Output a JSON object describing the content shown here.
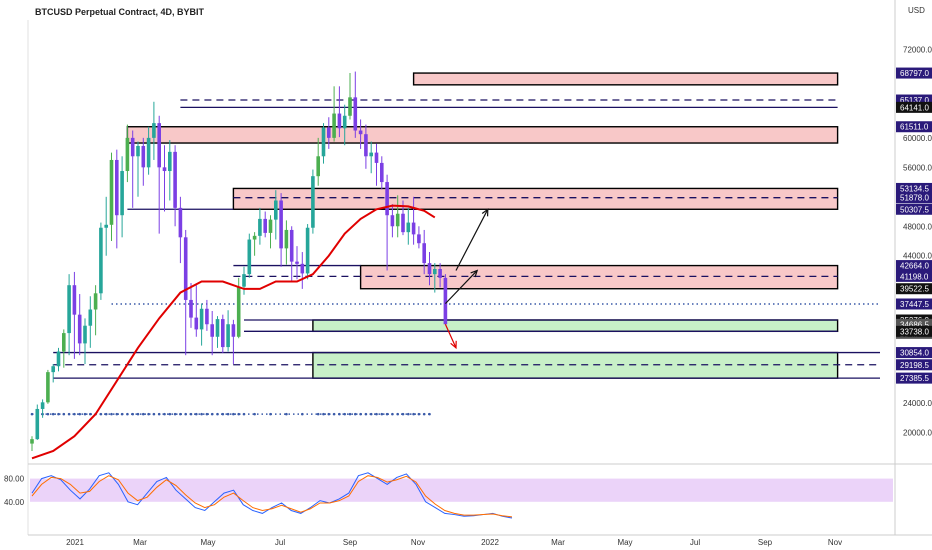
{
  "header": {
    "title": "BTCUSD Perpetual Contract, 4D, BYBIT",
    "currency": "USD"
  },
  "colors": {
    "up": "#26a69a",
    "up_alt": "#4caf50",
    "down": "#7b3fe4",
    "ema": "#e00000",
    "resistance_zone": "#f8c8c8",
    "support_zone": "#c8f0c8",
    "rsi_band": "#e6c8f8",
    "price_tag": "#2a1a7a",
    "price_tag_dark": "#111111",
    "current_price": "#555555"
  },
  "chart_data": {
    "type": "candlestick",
    "title": "BTCUSD Perpetual Contract, 4D, BYBIT",
    "ylabel": "USD",
    "ylim": [
      16000,
      76000
    ],
    "y_ticks": [
      {
        "value": 72000,
        "label": "72000.0"
      },
      {
        "value": 64000,
        "label": "64000.0"
      },
      {
        "value": 60000,
        "label": "60000.0"
      },
      {
        "value": 56000,
        "label": "56000.0"
      },
      {
        "value": 48000,
        "label": "48000.0"
      },
      {
        "value": 44000,
        "label": "44000.0"
      },
      {
        "value": 24000,
        "label": "24000.0"
      },
      {
        "value": 20000,
        "label": "20000.0"
      }
    ],
    "x_ticks": [
      "2021",
      "Mar",
      "May",
      "Jul",
      "Sep",
      "Nov",
      "2022",
      "Mar",
      "May",
      "Jul",
      "Sep",
      "Nov"
    ],
    "price_levels": [
      {
        "value": 68797.0,
        "label": "68797.0",
        "style": "tag"
      },
      {
        "value": 65137.0,
        "label": "65137.0",
        "style": "tag"
      },
      {
        "value": 64141.0,
        "label": "64141.0",
        "style": "dark"
      },
      {
        "value": 61511.0,
        "label": "61511.0",
        "style": "tag"
      },
      {
        "value": 53134.5,
        "label": "53134.5",
        "style": "tag"
      },
      {
        "value": 51878.0,
        "label": "51878.0",
        "style": "tag"
      },
      {
        "value": 50307.5,
        "label": "50307.5",
        "style": "tag"
      },
      {
        "value": 42664.0,
        "label": "42664.0",
        "style": "tag"
      },
      {
        "value": 41198.0,
        "label": "41198.0",
        "style": "tag"
      },
      {
        "value": 39522.5,
        "label": "39522.5",
        "style": "dark"
      },
      {
        "value": 37447.5,
        "label": "37447.5",
        "style": "tag"
      },
      {
        "value": 35276.0,
        "label": "35276.0",
        "style": "dark"
      },
      {
        "value": 34686.5,
        "label": "34686.5",
        "style": "current"
      },
      {
        "value": 33738.0,
        "label": "33738.0",
        "style": "dark"
      },
      {
        "value": 30854.0,
        "label": "30854.0",
        "style": "tag"
      },
      {
        "value": 29198.5,
        "label": "29198.5",
        "style": "tag"
      },
      {
        "value": 27385.5,
        "label": "27385.5",
        "style": "tag"
      }
    ],
    "countdown": "2d 4h",
    "resistance_zones": [
      {
        "top": 68797,
        "bottom": 67200,
        "from": 72,
        "to": 152
      },
      {
        "top": 61511,
        "bottom": 59300,
        "from": 18,
        "to": 152
      },
      {
        "top": 53134.5,
        "bottom": 50307.5,
        "from": 38,
        "to": 152
      },
      {
        "top": 42664,
        "bottom": 39522.5,
        "from": 62,
        "to": 152
      }
    ],
    "support_zones": [
      {
        "top": 35276,
        "bottom": 33738,
        "from": 53,
        "to": 152
      },
      {
        "top": 30854,
        "bottom": 27385.5,
        "from": 53,
        "to": 152
      }
    ],
    "horizontal_lines": [
      {
        "value": 65137,
        "style": "dashed",
        "from": 28,
        "to": 152
      },
      {
        "value": 64141,
        "style": "solid",
        "from": 28,
        "to": 152
      },
      {
        "value": 51878,
        "style": "dashed",
        "from": 38,
        "to": 152
      },
      {
        "value": 50307.5,
        "style": "solid",
        "from": 18,
        "to": 38
      },
      {
        "value": 42664,
        "style": "solid",
        "from": 38,
        "to": 62
      },
      {
        "value": 41198,
        "style": "dashed",
        "from": 38,
        "to": 152
      },
      {
        "value": 37447.5,
        "style": "dotted",
        "from": 15,
        "to": 160
      },
      {
        "value": 35276,
        "style": "solid",
        "from": 40,
        "to": 152
      },
      {
        "value": 33738,
        "style": "solid",
        "from": 40,
        "to": 152
      },
      {
        "value": 30854,
        "style": "solid",
        "from": 4,
        "to": 160
      },
      {
        "value": 29198.5,
        "style": "dashed",
        "from": 4,
        "to": 160
      },
      {
        "value": 27385.5,
        "style": "solid",
        "from": 4,
        "to": 160
      },
      {
        "value": 22500,
        "style": "dotted",
        "from": 0,
        "to": 75
      }
    ],
    "candles": [
      [
        0,
        18500,
        19500,
        17500,
        19100
      ],
      [
        1,
        19100,
        23800,
        19000,
        23200
      ],
      [
        2,
        23200,
        24500,
        22000,
        24100
      ],
      [
        3,
        24100,
        28500,
        23900,
        28200
      ],
      [
        4,
        28200,
        29300,
        26800,
        29000
      ],
      [
        5,
        29000,
        31500,
        28300,
        31000
      ],
      [
        6,
        31000,
        34000,
        28800,
        33500
      ],
      [
        7,
        33500,
        41500,
        30500,
        40000
      ],
      [
        8,
        40000,
        41800,
        30000,
        36000
      ],
      [
        9,
        36000,
        38800,
        30500,
        32100
      ],
      [
        10,
        32100,
        35500,
        29300,
        34500
      ],
      [
        11,
        34500,
        38500,
        31500,
        36700
      ],
      [
        12,
        36700,
        40000,
        33200,
        38900
      ],
      [
        13,
        38900,
        48500,
        38000,
        47800
      ],
      [
        14,
        47800,
        52000,
        44000,
        48200
      ],
      [
        15,
        48200,
        58000,
        46000,
        57000
      ],
      [
        16,
        57000,
        58400,
        45000,
        49500
      ],
      [
        17,
        49500,
        57500,
        46500,
        55500
      ],
      [
        18,
        55500,
        61800,
        54000,
        60000
      ],
      [
        19,
        60000,
        61000,
        50500,
        57500
      ],
      [
        20,
        57500,
        59500,
        52000,
        58900
      ],
      [
        21,
        58900,
        60000,
        53500,
        56000
      ],
      [
        22,
        56000,
        61500,
        55000,
        60000
      ],
      [
        23,
        60000,
        64900,
        57000,
        62000
      ],
      [
        24,
        62000,
        63000,
        47000,
        56000
      ],
      [
        25,
        56000,
        59000,
        50000,
        55500
      ],
      [
        26,
        55500,
        59700,
        51500,
        58100
      ],
      [
        27,
        58100,
        59000,
        48000,
        50500
      ],
      [
        28,
        50500,
        52000,
        43000,
        46500
      ],
      [
        29,
        46500,
        47500,
        30500,
        38000
      ],
      [
        30,
        38000,
        40300,
        34200,
        35600
      ],
      [
        31,
        35600,
        40000,
        33000,
        34000
      ],
      [
        32,
        34000,
        37500,
        31800,
        36800
      ],
      [
        33,
        36800,
        38000,
        33800,
        34700
      ],
      [
        34,
        34700,
        36500,
        30500,
        33000
      ],
      [
        35,
        33000,
        35800,
        31500,
        35400
      ],
      [
        36,
        35400,
        36000,
        30800,
        31600
      ],
      [
        37,
        31600,
        36600,
        31000,
        34700
      ],
      [
        38,
        34700,
        35300,
        29300,
        33000
      ],
      [
        39,
        33000,
        41000,
        32800,
        39800
      ],
      [
        40,
        39800,
        42500,
        38700,
        41500
      ],
      [
        41,
        41500,
        47000,
        41000,
        46200
      ],
      [
        42,
        46200,
        47200,
        44000,
        46700
      ],
      [
        43,
        46700,
        50500,
        45500,
        49000
      ],
      [
        44,
        49000,
        50000,
        46500,
        47100
      ],
      [
        45,
        47100,
        49500,
        45000,
        48900
      ],
      [
        46,
        48900,
        52900,
        46200,
        51500
      ],
      [
        47,
        51500,
        52500,
        42500,
        45000
      ],
      [
        48,
        45000,
        48800,
        42800,
        47500
      ],
      [
        49,
        47500,
        48000,
        40500,
        43200
      ],
      [
        50,
        43200,
        45300,
        40800,
        42900
      ],
      [
        51,
        42900,
        44500,
        39500,
        41600
      ],
      [
        52,
        41600,
        48300,
        40800,
        47800
      ],
      [
        53,
        47800,
        55700,
        47000,
        54800
      ],
      [
        54,
        54800,
        60000,
        53500,
        57500
      ],
      [
        55,
        57500,
        62000,
        56500,
        61400
      ],
      [
        56,
        61400,
        62800,
        58500,
        60000
      ],
      [
        57,
        60000,
        67000,
        59500,
        63300
      ],
      [
        58,
        63300,
        67000,
        60100,
        61300
      ],
      [
        59,
        61300,
        64500,
        59000,
        63000
      ],
      [
        60,
        63000,
        68800,
        62500,
        65500
      ],
      [
        61,
        65500,
        69000,
        60000,
        61000
      ],
      [
        62,
        61000,
        62500,
        58500,
        60500
      ],
      [
        63,
        60500,
        61800,
        55800,
        57500
      ],
      [
        64,
        57500,
        59500,
        55200,
        58000
      ],
      [
        65,
        58000,
        59200,
        53500,
        56600
      ],
      [
        66,
        56600,
        57500,
        53000,
        54000
      ],
      [
        67,
        54000,
        55000,
        42000,
        49500
      ],
      [
        68,
        49500,
        51000,
        46500,
        48000
      ],
      [
        69,
        48000,
        52200,
        46500,
        49700
      ],
      [
        70,
        49700,
        51500,
        46800,
        47200
      ],
      [
        71,
        47200,
        50500,
        45500,
        48500
      ],
      [
        72,
        48500,
        52000,
        45500,
        46900
      ],
      [
        73,
        46900,
        48000,
        45000,
        45700
      ],
      [
        74,
        45700,
        47500,
        41500,
        43000
      ],
      [
        75,
        43000,
        44500,
        40000,
        41500
      ],
      [
        76,
        41500,
        43000,
        39000,
        42200
      ],
      [
        77,
        42200,
        43000,
        39700,
        41000
      ],
      [
        78,
        41000,
        41500,
        35000,
        34700
      ]
    ],
    "ema": [
      [
        0,
        16500
      ],
      [
        4,
        17500
      ],
      [
        8,
        19500
      ],
      [
        12,
        22500
      ],
      [
        16,
        27000
      ],
      [
        20,
        31500
      ],
      [
        24,
        35500
      ],
      [
        28,
        39000
      ],
      [
        32,
        40500
      ],
      [
        36,
        40500
      ],
      [
        40,
        39500
      ],
      [
        43,
        39500
      ],
      [
        46,
        40500
      ],
      [
        50,
        40500
      ],
      [
        53,
        41500
      ],
      [
        56,
        44000
      ],
      [
        59,
        47000
      ],
      [
        62,
        49000
      ],
      [
        65,
        50300
      ],
      [
        68,
        50800
      ],
      [
        71,
        50700
      ],
      [
        74,
        50100
      ],
      [
        76,
        49200
      ]
    ],
    "arrows": [
      {
        "from": [
          78,
          37500
        ],
        "to": [
          84,
          42000
        ],
        "color": "#111111"
      },
      {
        "from": [
          80,
          42000
        ],
        "to": [
          86,
          50300
        ],
        "color": "#111111"
      },
      {
        "from": [
          78,
          34700
        ],
        "to": [
          80,
          31500
        ],
        "color": "#e00000"
      }
    ],
    "dots_row": {
      "value": 22500,
      "from": 0,
      "to": 75
    },
    "rsi": {
      "ylim": [
        0,
        100
      ],
      "y_ticks": [
        {
          "value": 80,
          "label": "80.00"
        },
        {
          "value": 40,
          "label": "40.00"
        }
      ],
      "band": [
        40,
        80
      ],
      "k": [
        55,
        80,
        85,
        78,
        60,
        45,
        62,
        85,
        90,
        70,
        40,
        35,
        55,
        75,
        82,
        60,
        45,
        30,
        25,
        40,
        55,
        60,
        35,
        25,
        20,
        30,
        38,
        25,
        20,
        30,
        42,
        38,
        45,
        55,
        85,
        90,
        80,
        70,
        82,
        88,
        70,
        40,
        30,
        20,
        18,
        15,
        16,
        18,
        20,
        15,
        12
      ],
      "d": [
        50,
        70,
        82,
        80,
        70,
        55,
        58,
        75,
        85,
        78,
        55,
        42,
        48,
        65,
        78,
        68,
        52,
        38,
        30,
        35,
        48,
        55,
        42,
        30,
        25,
        28,
        34,
        28,
        22,
        28,
        38,
        38,
        42,
        50,
        75,
        85,
        82,
        74,
        78,
        84,
        74,
        50,
        36,
        25,
        20,
        17,
        17,
        18,
        19,
        16,
        14
      ],
      "k_color": "#2962ff",
      "d_color": "#ff6d00"
    }
  }
}
